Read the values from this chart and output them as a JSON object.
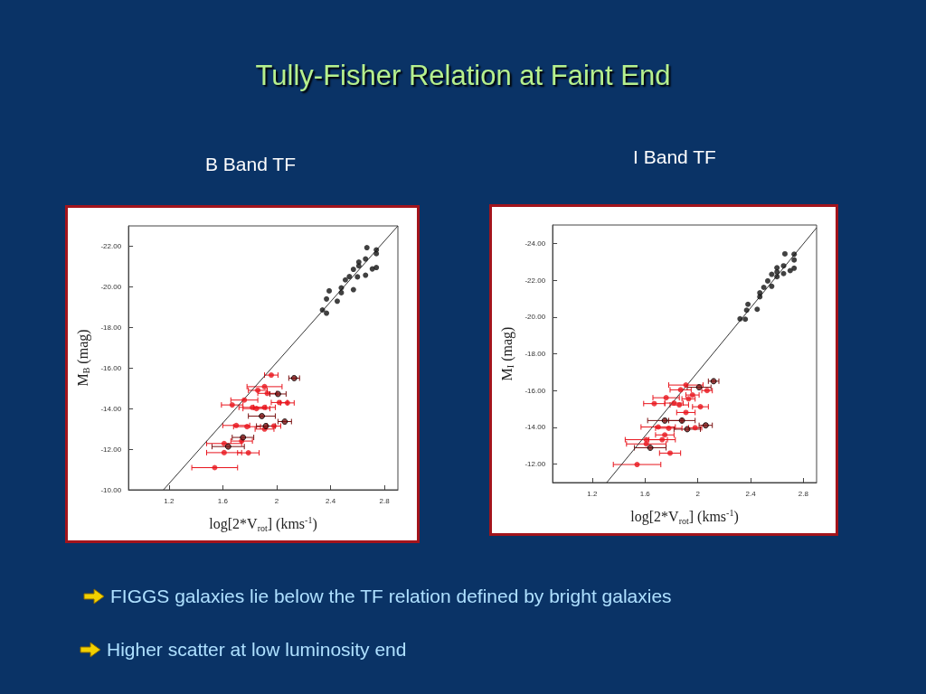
{
  "chart_data": [
    {
      "type": "other",
      "title": "Tully-Fisher Relation at Faint End",
      "annotations": [
        "FIGGS galaxies lie below the TF relation defined by bright galaxies",
        "Higher scatter at low luminosity end"
      ]
    },
    {
      "type": "scatter",
      "title": "B Band TF",
      "xlabel": "log[2*V$_{rot}$] (kms$^{-1}$)",
      "ylabel": "M$_{B}$ (mag)",
      "xlim": [
        0.9,
        2.9
      ],
      "xticks": [
        1.2,
        1.6,
        2,
        2.4,
        2.8
      ],
      "ylim": [
        -10,
        -23
      ],
      "yticks": [
        {
          "value": -22,
          "label": "-22.00"
        },
        {
          "value": -20,
          "label": "-20.00"
        },
        {
          "value": -18,
          "label": "-18.00"
        },
        {
          "value": -16,
          "label": "-16.00"
        },
        {
          "value": -14,
          "label": "-14.00"
        },
        {
          "value": -12,
          "label": "-12.00"
        },
        {
          "value": -10,
          "label": "-10.00"
        }
      ],
      "marker": "circle",
      "series": [
        {
          "color": "#111111",
          "x": [
            2.67,
            2.74,
            2.74,
            2.66,
            2.61,
            2.61,
            2.57,
            2.54,
            2.51,
            2.6,
            2.66,
            2.71,
            2.74,
            2.48,
            2.48,
            2.57,
            2.45,
            2.39,
            2.37,
            2.34,
            2.37
          ],
          "values": [
            -21.93,
            -21.82,
            -21.63,
            -21.37,
            -21.22,
            -21.03,
            -20.86,
            -20.5,
            -20.34,
            -20.49,
            -20.57,
            -20.88,
            -20.95,
            -19.95,
            -19.71,
            -19.86,
            -19.29,
            -19.8,
            -19.4,
            -18.86,
            -18.7
          ]
        },
        {
          "color": "#e8141c",
          "x": [
            1.96,
            1.91,
            1.86,
            1.93,
            1.76,
            1.67,
            2.02,
            2.08,
            1.82,
            1.85,
            1.91,
            1.7,
            1.78,
            1.98,
            1.91,
            1.74,
            1.61,
            1.61,
            1.79,
            1.54
          ],
          "values": [
            -15.65,
            -15.08,
            -14.9,
            -14.75,
            -14.42,
            -14.18,
            -14.3,
            -14.28,
            -14.06,
            -14.0,
            -14.06,
            -13.17,
            -13.11,
            -13.14,
            -12.99,
            -12.4,
            -12.28,
            -11.83,
            -11.82,
            -11.09
          ],
          "xerrors": [
            0.05,
            0.13,
            0.07,
            0.07,
            0.1,
            0.08,
            0.06,
            0.05,
            0.1,
            0.1,
            0.08,
            0.1,
            0.1,
            0.05,
            0.07,
            0.08,
            0.13,
            0.13,
            0.08,
            0.17
          ]
        },
        {
          "color": "#7a1212",
          "x": [
            2.13,
            2.01,
            1.89,
            2.06,
            1.92,
            1.75,
            1.64
          ],
          "values": [
            -15.5,
            -14.72,
            -13.63,
            -13.36,
            -13.14,
            -12.58,
            -12.13
          ],
          "xerrors": [
            0.04,
            0.06,
            0.1,
            0.05,
            0.07,
            0.08,
            0.12
          ]
        },
        {
          "type": "line",
          "color": "#333333",
          "marker": "none",
          "x": [
            1.16,
            2.9
          ],
          "values": [
            -10,
            -23
          ]
        }
      ]
    },
    {
      "type": "scatter",
      "title": "I Band TF",
      "xlabel": "log[2*V$_{rot}$] (kms$^{-1}$)",
      "ylabel": "M$_{I}$ (mag)",
      "xlim": [
        0.9,
        2.9
      ],
      "xticks": [
        1.2,
        1.6,
        2,
        2.4,
        2.8
      ],
      "ylim": [
        -11,
        -25
      ],
      "yticks": [
        {
          "value": -24,
          "label": "-24.00"
        },
        {
          "value": -22,
          "label": "-22.00"
        },
        {
          "value": -20,
          "label": "-20.00"
        },
        {
          "value": -18,
          "label": "-18.00"
        },
        {
          "value": -16,
          "label": "-16.00"
        },
        {
          "value": -14,
          "label": "-14.00"
        },
        {
          "value": -12,
          "label": "-12.00"
        }
      ],
      "marker": "circle",
      "series": [
        {
          "color": "#111111",
          "x": [
            2.66,
            2.73,
            2.73,
            2.65,
            2.6,
            2.73,
            2.7,
            2.6,
            2.56,
            2.6,
            2.65,
            2.53,
            2.5,
            2.56,
            2.47,
            2.47,
            2.38,
            2.37,
            2.45,
            2.32,
            2.36
          ],
          "values": [
            -23.43,
            -23.41,
            -23.1,
            -22.78,
            -22.68,
            -22.65,
            -22.52,
            -22.45,
            -22.32,
            -22.19,
            -22.36,
            -21.96,
            -21.61,
            -21.67,
            -21.31,
            -21.1,
            -20.69,
            -20.37,
            -20.42,
            -19.9,
            -19.88
          ]
        },
        {
          "color": "#e8141c",
          "x": [
            1.91,
            1.87,
            2.07,
            1.96,
            1.76,
            1.93,
            1.67,
            1.82,
            1.86,
            2.02,
            1.91,
            1.7,
            1.78,
            1.98,
            1.75,
            1.61,
            1.73,
            1.61,
            1.79,
            1.54
          ],
          "values": [
            -16.3,
            -16.04,
            -16.0,
            -15.76,
            -15.61,
            -15.55,
            -15.29,
            -15.32,
            -15.22,
            -15.12,
            -14.81,
            -14.02,
            -13.95,
            -13.98,
            -13.59,
            -13.33,
            -13.33,
            -13.1,
            -12.6,
            -11.98
          ],
          "xerrors": [
            0.13,
            0.08,
            0.04,
            0.05,
            0.1,
            0.05,
            0.08,
            0.07,
            0.07,
            0.06,
            0.07,
            0.13,
            0.1,
            0.05,
            0.07,
            0.16,
            0.1,
            0.15,
            0.08,
            0.18
          ]
        },
        {
          "color": "#7a1212",
          "x": [
            2.12,
            2.01,
            1.75,
            1.88,
            2.06,
            1.92,
            1.64
          ],
          "values": [
            -16.51,
            -16.18,
            -14.37,
            -14.37,
            -14.11,
            -13.9,
            -12.89
          ],
          "xerrors": [
            0.04,
            0.09,
            0.13,
            0.1,
            0.05,
            0.1,
            0.12
          ]
        },
        {
          "type": "line",
          "color": "#333333",
          "marker": "none",
          "x": [
            1.31,
            2.9
          ],
          "values": [
            -11,
            -24.85
          ]
        }
      ]
    }
  ]
}
